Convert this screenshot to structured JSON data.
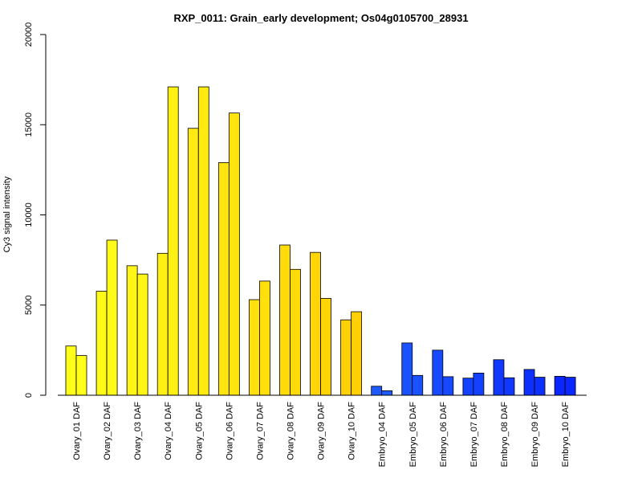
{
  "chart_data": {
    "type": "bar",
    "title": "RXP_0011: Grain_early development; Os04g0105700_28931",
    "xlabel": "",
    "ylabel": "Cy3 signal intensity",
    "ylim": [
      0,
      20000
    ],
    "yticks": [
      0,
      5000,
      10000,
      15000,
      20000
    ],
    "grid": false,
    "legend": "none",
    "categories": [
      "Ovary_01 DAF",
      "Ovary_02 DAF",
      "Ovary_03 DAF",
      "Ovary_04 DAF",
      "Ovary_05 DAF",
      "Ovary_06 DAF",
      "Ovary_07 DAF",
      "Ovary_08 DAF",
      "Ovary_09 DAF",
      "Ovary_10 DAF",
      "Embryo_04 DAF",
      "Embryo_05 DAF",
      "Embryo_06 DAF",
      "Embryo_07 DAF",
      "Embryo_08 DAF",
      "Embryo_09 DAF",
      "Embryo_10 DAF"
    ],
    "colors": [
      "#FFFF1A",
      "#FFFB19",
      "#FFF517",
      "#FFF014",
      "#FFEB11",
      "#FFE50F",
      "#FFE00C",
      "#FFDB09",
      "#FFD506",
      "#FFD004",
      "#1D5BFF",
      "#1A52FF",
      "#174AFF",
      "#1441FF",
      "#1138FF",
      "#0E30FF",
      "#0B27FF"
    ],
    "series": [
      {
        "values": [
          2730,
          5770,
          7180,
          7870,
          14800,
          12900,
          5300,
          8330,
          7920,
          4180,
          500,
          2900,
          2500,
          950,
          1970,
          1430,
          1050
        ]
      },
      {
        "values": [
          2200,
          8600,
          6720,
          17100,
          17100,
          15650,
          6330,
          6980,
          5370,
          4630,
          250,
          1100,
          1030,
          1230,
          970,
          1000,
          1000
        ]
      }
    ]
  }
}
